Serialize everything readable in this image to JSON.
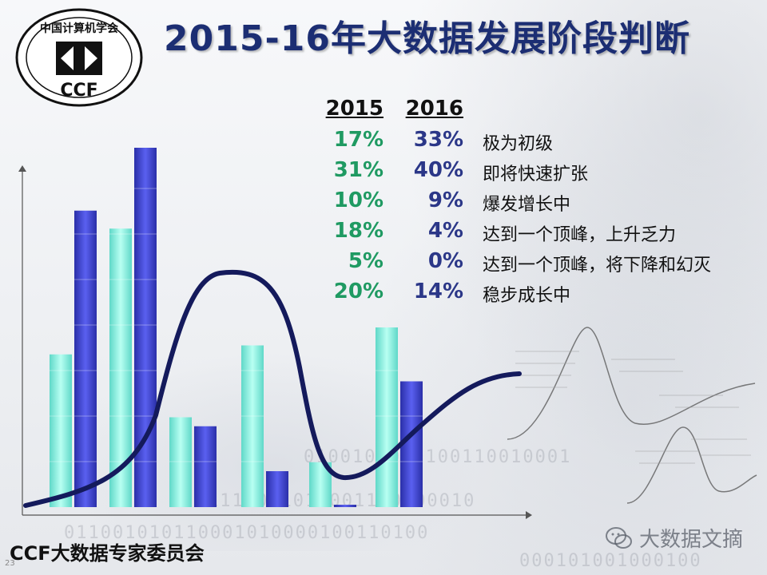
{
  "slide": {
    "title": "2015-16年大数据发展阶段判断",
    "footer": "CCF大数据专家委员会",
    "slide_number": "23",
    "watermark": "大数据文摘",
    "logo_text": "CCF",
    "logo_ring_text": "中国计算机学会"
  },
  "table": {
    "header_2015": "2015",
    "header_2016": "2016",
    "rows": [
      {
        "v2015": "17%",
        "v2016": "33%",
        "stage": "极为初级"
      },
      {
        "v2015": "31%",
        "v2016": "40%",
        "stage": "即将快速扩张"
      },
      {
        "v2015": "10%",
        "v2016": "9%",
        "stage": "爆发增长中"
      },
      {
        "v2015": "18%",
        "v2016": "4%",
        "stage": "达到一个顶峰，上升乏力"
      },
      {
        "v2015": "5%",
        "v2016": "0%",
        "stage": "达到一个顶峰，将下降和幻灭"
      },
      {
        "v2015": "20%",
        "v2016": "14%",
        "stage": "稳步成长中"
      }
    ]
  },
  "chart_data": {
    "type": "bar",
    "categories": [
      "极为初级",
      "即将快速扩张",
      "爆发增长中",
      "达到一个顶峰，上升乏力",
      "达到一个顶峰，将下降和幻灭",
      "稳步成长中"
    ],
    "series": [
      {
        "name": "2015",
        "values": [
          17,
          31,
          10,
          18,
          5,
          20
        ],
        "color": "#7fe8d8"
      },
      {
        "name": "2016",
        "values": [
          33,
          40,
          9,
          4,
          0,
          14
        ],
        "color": "#3a3fc8"
      }
    ],
    "ylim": [
      0,
      40
    ],
    "overlay": "hype-cycle curve"
  },
  "colors": {
    "title": "#1c2e73",
    "curve": "#141a5c",
    "value_2015": "#1f9a62",
    "value_2016": "#2b3788"
  },
  "icons": {
    "wechat": "wechat-icon",
    "logo": "ccf-logo-icon"
  }
}
